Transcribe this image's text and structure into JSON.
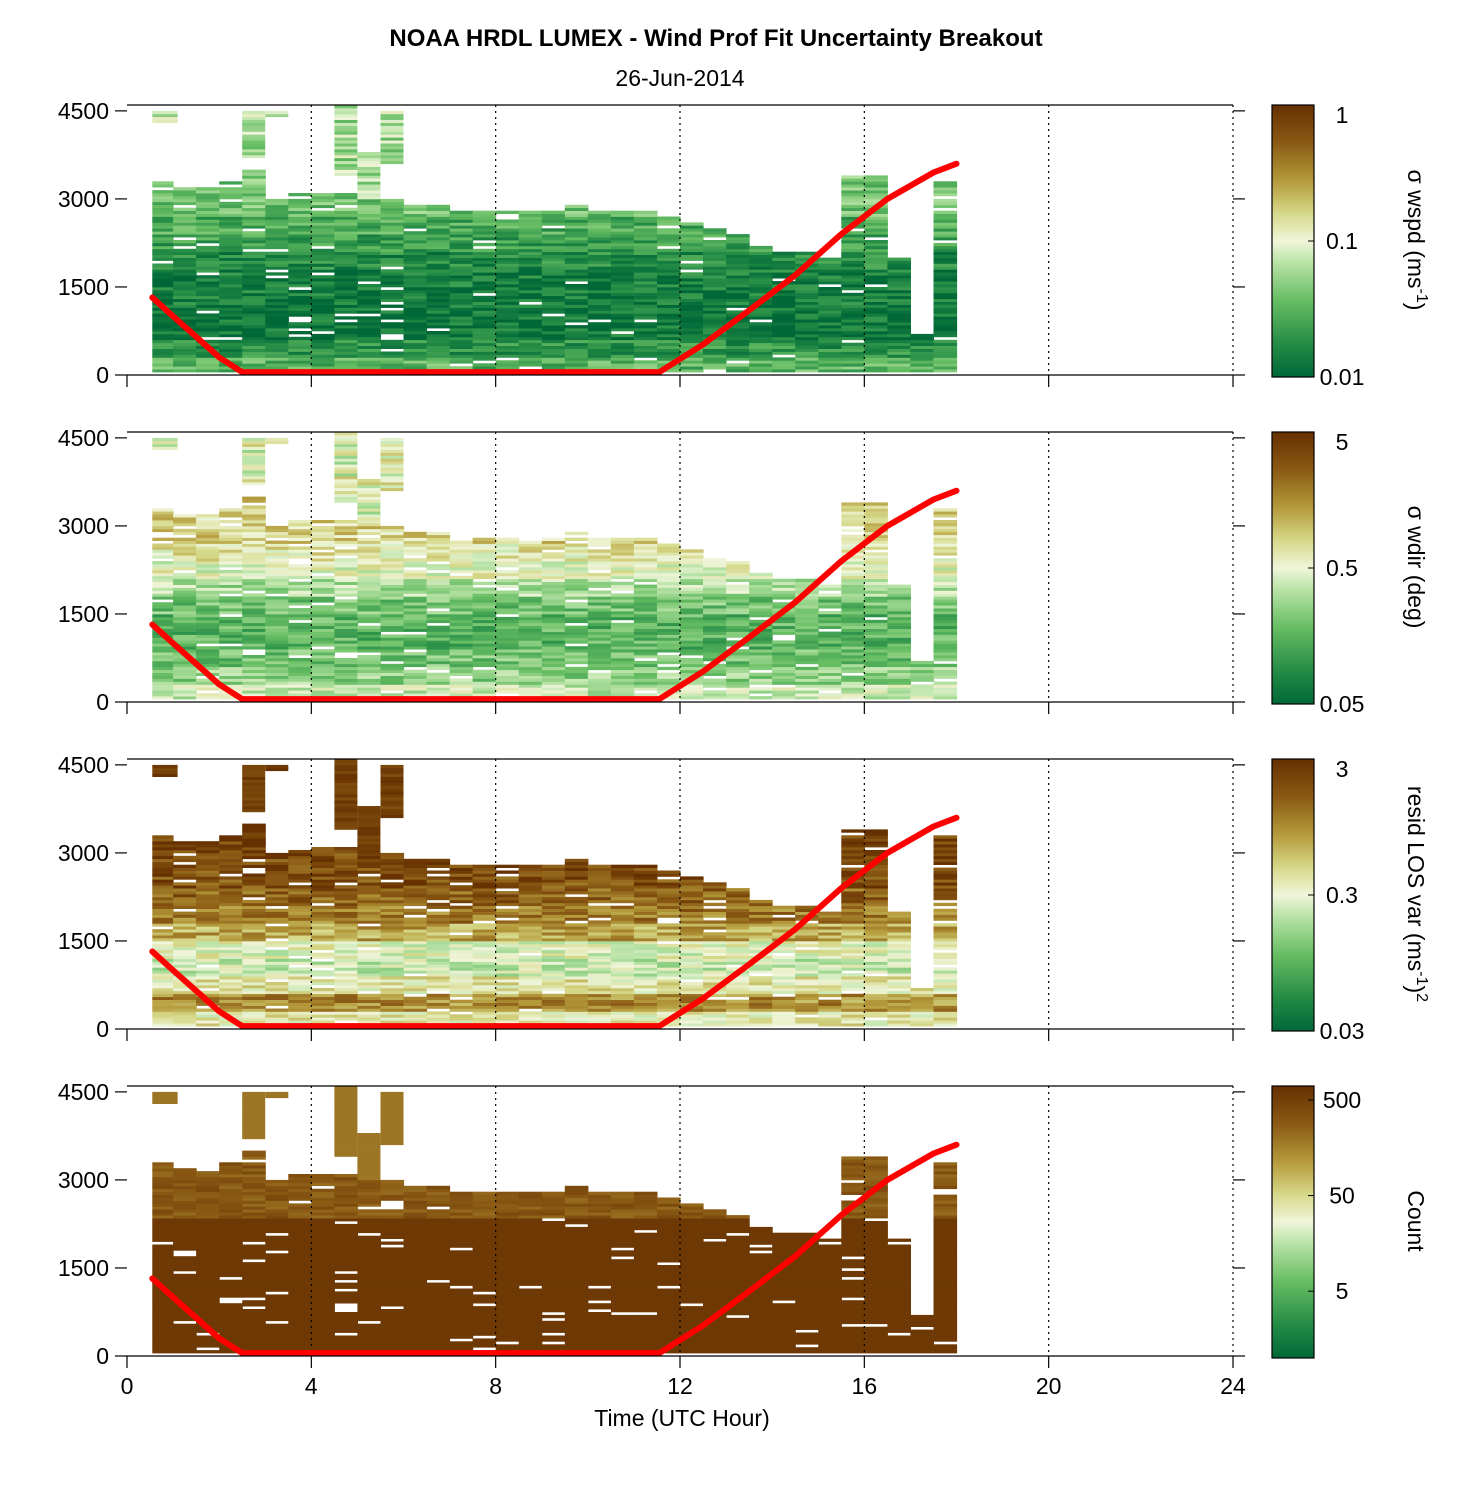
{
  "figure": {
    "title": "NOAA HRDL LUMEX - Wind Prof Fit Uncertainty Breakout",
    "subtitle": "26-Jun-2014"
  },
  "colors": {
    "dark_green": "#006837",
    "light": "#f0f5da",
    "dark_brown": "#663000",
    "curve": "#ff0000"
  },
  "chart_data": [
    {
      "type": "heatmap",
      "panel": "wspd",
      "xlabel": "Time (UTC Hour)",
      "ylabel": "",
      "xlim": [
        0,
        24
      ],
      "ylim": [
        0,
        4600
      ],
      "xticks": [
        "0",
        "4",
        "8",
        "12",
        "16",
        "20",
        "24"
      ],
      "yticks": [
        "0",
        "1500",
        "3000",
        "4500"
      ],
      "grid": "dotted vertical at 4,8,12,16,20,24",
      "colorbar": {
        "label_main": "σ wspd (ms",
        "label_sup": "-1",
        "label_tail": ")",
        "scale": "log",
        "range": [
          0.01,
          1
        ],
        "ticks": [
          "1",
          "0.1",
          "0.01"
        ]
      },
      "data_time_range": [
        0.55,
        18
      ],
      "level_profile": [
        0.25,
        0.15,
        0.05,
        0.05,
        0.07,
        0.08,
        0.12,
        0.18,
        0.22,
        0.3,
        0.3,
        0.35,
        0.4,
        0.4,
        0.4,
        0.4
      ]
    },
    {
      "type": "heatmap",
      "panel": "wdir",
      "xlabel": "Time (UTC Hour)",
      "ylabel": "",
      "xlim": [
        0,
        24
      ],
      "ylim": [
        0,
        4600
      ],
      "xticks": [
        "0",
        "4",
        "8",
        "12",
        "16",
        "20",
        "24"
      ],
      "yticks": [
        "0",
        "1500",
        "3000",
        "4500"
      ],
      "grid": "dotted vertical at 4,8,12,16,20,24",
      "colorbar": {
        "label_main": "σ wdir (deg)",
        "label_sup": "",
        "label_tail": "",
        "scale": "log",
        "range": [
          0.05,
          5
        ],
        "ticks": [
          "5",
          "0.5",
          "0.05"
        ]
      },
      "data_time_range": [
        0.55,
        18
      ],
      "level_profile": [
        0.45,
        0.35,
        0.3,
        0.25,
        0.25,
        0.3,
        0.4,
        0.5,
        0.55,
        0.6,
        0.6,
        0.62,
        0.65,
        0.65,
        0.6,
        0.5
      ]
    },
    {
      "type": "heatmap",
      "panel": "resid",
      "xlabel": "Time (UTC Hour)",
      "ylabel": "",
      "xlim": [
        0,
        24
      ],
      "ylim": [
        0,
        4600
      ],
      "xticks": [
        "0",
        "4",
        "8",
        "12",
        "16",
        "20",
        "24"
      ],
      "yticks": [
        "0",
        "1500",
        "3000",
        "4500"
      ],
      "grid": "dotted vertical at 4,8,12,16,20,24",
      "colorbar": {
        "label_main": "resid LOS var (ms",
        "label_sup": "-1",
        "label_tail": ")",
        "label_sup2": "2",
        "scale": "log",
        "range": [
          0.03,
          3
        ],
        "ticks": [
          "3",
          "0.3",
          "0.03"
        ]
      },
      "data_time_range": [
        0.55,
        18
      ],
      "level_profile": [
        0.55,
        0.75,
        0.55,
        0.45,
        0.5,
        0.7,
        0.8,
        0.85,
        0.9,
        0.92,
        0.95,
        0.95,
        0.95,
        0.95,
        0.9,
        0.9
      ]
    },
    {
      "type": "heatmap",
      "panel": "count",
      "xlabel": "Time (UTC Hour)",
      "ylabel": "",
      "xlim": [
        0,
        24
      ],
      "ylim": [
        0,
        4600
      ],
      "xticks": [
        "0",
        "4",
        "8",
        "12",
        "16",
        "20",
        "24"
      ],
      "yticks": [
        "0",
        "1500",
        "3000",
        "4500"
      ],
      "grid": "dotted vertical at 4,8,12,16,20,24",
      "colorbar": {
        "label_main": "Count",
        "label_sup": "",
        "label_tail": "",
        "scale": "log",
        "range": [
          1,
          700
        ],
        "ticks": [
          "500",
          "50",
          "5"
        ]
      },
      "data_time_range": [
        0.55,
        18
      ],
      "level_profile": [
        0.97,
        0.97,
        0.97,
        0.97,
        0.97,
        0.97,
        0.97,
        0.97,
        0.97,
        0.96,
        0.9,
        0.85,
        0.85,
        0.8,
        0.78,
        0.78
      ]
    }
  ],
  "red_curve": {
    "series_name": "",
    "points": [
      [
        0.55,
        1320
      ],
      [
        1.0,
        1000
      ],
      [
        1.5,
        650
      ],
      [
        2.0,
        300
      ],
      [
        2.5,
        50
      ],
      [
        11.55,
        50
      ],
      [
        12.5,
        520
      ],
      [
        13.5,
        1100
      ],
      [
        14.5,
        1700
      ],
      [
        15.5,
        2400
      ],
      [
        16.5,
        3000
      ],
      [
        17.5,
        3450
      ],
      [
        18,
        3600
      ]
    ]
  }
}
